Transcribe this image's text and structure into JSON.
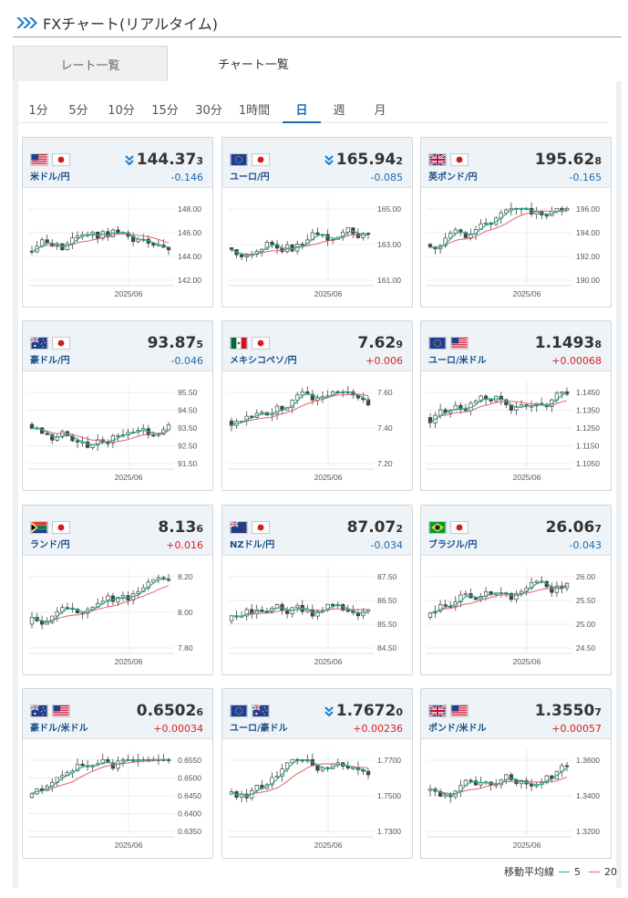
{
  "header": {
    "title": "FXチャート(リアルタイム)"
  },
  "tabs": [
    {
      "label": "レート一覧"
    },
    {
      "label": "チャート一覧"
    }
  ],
  "periods": [
    "1分",
    "5分",
    "10分",
    "15分",
    "30分",
    "1時間",
    "日",
    "週",
    "月"
  ],
  "active_period": "日",
  "colors": {
    "ma5": "#1fb394",
    "ma20": "#e06464",
    "neg": "#1a6bb5",
    "pos": "#e02020"
  },
  "legend": {
    "label": "移動平均線",
    "ma5_label": "5",
    "ma20_label": "20"
  },
  "cards": [
    {
      "pair": "米ドル/円",
      "flags": [
        "us",
        "jp"
      ],
      "price_main": "144.37",
      "price_sub": "3",
      "arrow": true,
      "change": "-0.146",
      "dir": "neg",
      "ticks": [
        "148.00",
        "146.00",
        "144.00",
        "142.00"
      ],
      "xlabel": "2025/06"
    },
    {
      "pair": "ユーロ/円",
      "flags": [
        "eu",
        "jp"
      ],
      "price_main": "165.94",
      "price_sub": "2",
      "arrow": true,
      "change": "-0.085",
      "dir": "neg",
      "ticks": [
        "165.00",
        "163.00",
        "161.00"
      ],
      "xlabel": "2025/06"
    },
    {
      "pair": "英ポンド/円",
      "flags": [
        "gb",
        "jp"
      ],
      "price_main": "195.62",
      "price_sub": "8",
      "arrow": false,
      "change": "-0.165",
      "dir": "neg",
      "ticks": [
        "196.00",
        "194.00",
        "192.00",
        "190.00"
      ],
      "xlabel": "2025/06"
    },
    {
      "pair": "豪ドル/円",
      "flags": [
        "au",
        "jp"
      ],
      "price_main": "93.87",
      "price_sub": "5",
      "arrow": false,
      "change": "-0.046",
      "dir": "neg",
      "ticks": [
        "95.50",
        "94.50",
        "93.50",
        "92.50",
        "91.50"
      ],
      "xlabel": "2025/06"
    },
    {
      "pair": "メキシコペソ/円",
      "flags": [
        "mx",
        "jp"
      ],
      "price_main": "7.62",
      "price_sub": "9",
      "arrow": false,
      "change": "+0.006",
      "dir": "pos",
      "ticks": [
        "7.60",
        "7.40",
        "7.20"
      ],
      "xlabel": "2025/06"
    },
    {
      "pair": "ユーロ/米ドル",
      "flags": [
        "eu",
        "us"
      ],
      "price_main": "1.1493",
      "price_sub": "8",
      "arrow": false,
      "change": "+0.00068",
      "dir": "pos",
      "ticks": [
        "1.1450",
        "1.1350",
        "1.1250",
        "1.1150",
        "1.1050"
      ],
      "xlabel": "2025/06"
    },
    {
      "pair": "ランド/円",
      "flags": [
        "za",
        "jp"
      ],
      "price_main": "8.13",
      "price_sub": "6",
      "arrow": false,
      "change": "+0.016",
      "dir": "pos",
      "ticks": [
        "8.20",
        "8.00",
        "7.80"
      ],
      "xlabel": "2025/06"
    },
    {
      "pair": "NZドル/円",
      "flags": [
        "nz",
        "jp"
      ],
      "price_main": "87.07",
      "price_sub": "2",
      "arrow": false,
      "change": "-0.034",
      "dir": "neg",
      "ticks": [
        "87.50",
        "86.50",
        "85.50",
        "84.50"
      ],
      "xlabel": "2025/06"
    },
    {
      "pair": "ブラジル/円",
      "flags": [
        "br",
        "jp"
      ],
      "price_main": "26.06",
      "price_sub": "7",
      "arrow": false,
      "change": "-0.043",
      "dir": "neg",
      "ticks": [
        "26.00",
        "25.50",
        "25.00",
        "24.50"
      ],
      "xlabel": "2025/06"
    },
    {
      "pair": "豪ドル/米ドル",
      "flags": [
        "au",
        "us"
      ],
      "price_main": "0.6502",
      "price_sub": "6",
      "arrow": false,
      "change": "+0.00034",
      "dir": "pos",
      "ticks": [
        "0.6550",
        "0.6500",
        "0.6450",
        "0.6400",
        "0.6350"
      ],
      "xlabel": "2025/06"
    },
    {
      "pair": "ユーロ/豪ドル",
      "flags": [
        "eu",
        "au"
      ],
      "price_main": "1.7672",
      "price_sub": "0",
      "arrow": true,
      "change": "+0.00236",
      "dir": "pos",
      "ticks": [
        "1.7700",
        "1.7500",
        "1.7300"
      ],
      "xlabel": "2025/06"
    },
    {
      "pair": "ポンド/米ドル",
      "flags": [
        "gb",
        "us"
      ],
      "price_main": "1.3550",
      "price_sub": "7",
      "arrow": false,
      "change": "+0.00057",
      "dir": "pos",
      "ticks": [
        "1.3600",
        "1.3400",
        "1.3200"
      ],
      "xlabel": "2025/06"
    }
  ]
}
